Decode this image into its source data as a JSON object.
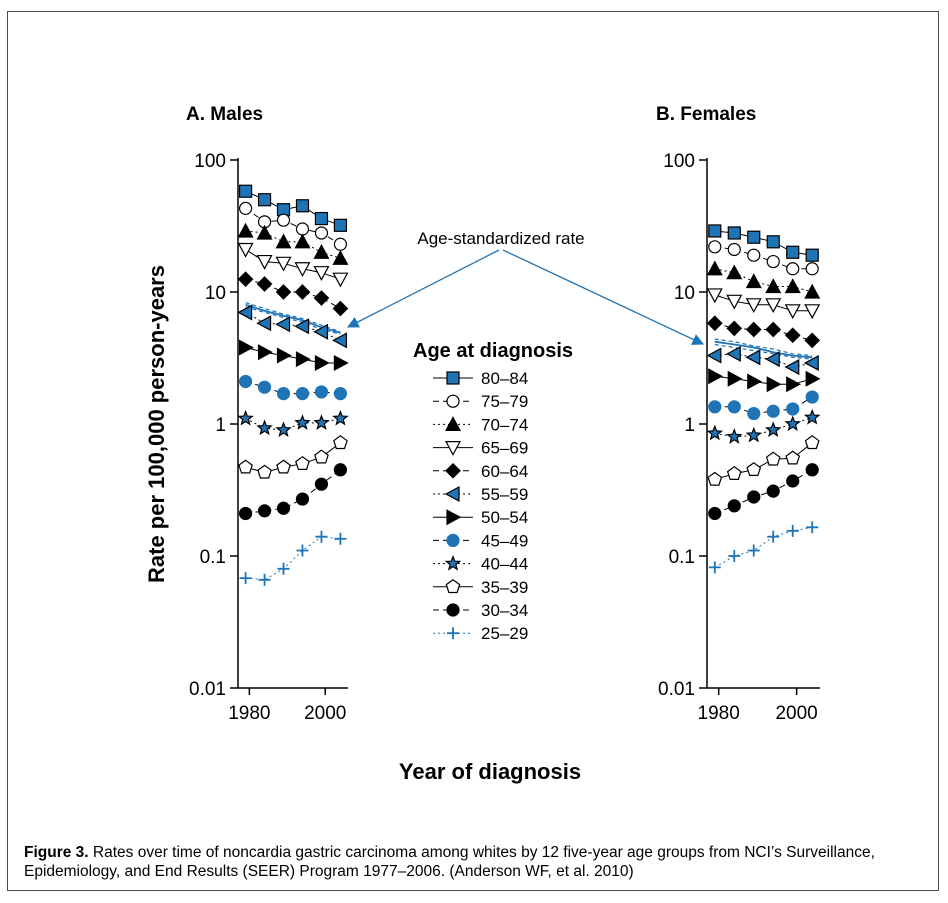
{
  "caption": {
    "label": "Figure 3.",
    "text": " Rates over time of noncardia gastric carcinoma among whites by 12 five-year age groups from NCI’s Surveillance, Epidemiology, and End Results (SEER) Program 1977–2006. (Anderson WF, et al. 2010)"
  },
  "annotation": "Age-standardized rate",
  "colors": {
    "blue": "#1f74b6",
    "black": "#000000"
  },
  "chart_data": [
    {
      "type": "line",
      "title": "A. Males",
      "xlabel": "Year of diagnosis",
      "ylabel": "Rate per 100,000 person-years",
      "yscale": "log",
      "ylim": [
        0.01,
        100
      ],
      "xlim": [
        1977,
        2006
      ],
      "x_ticks": [
        "1980",
        "2000"
      ],
      "y_ticks": [
        "100",
        "10",
        "1",
        "0.1",
        "0.01"
      ],
      "x": [
        1979,
        1984,
        1989,
        1994,
        1999,
        2004
      ],
      "legend_title": "Age at diagnosis",
      "series": [
        {
          "name": "80–84",
          "values": [
            58,
            50,
            42,
            45,
            36,
            32
          ]
        },
        {
          "name": "75–79",
          "values": [
            43,
            34,
            35,
            30,
            28,
            23
          ]
        },
        {
          "name": "70–74",
          "values": [
            29,
            28,
            24,
            24,
            20,
            18
          ]
        },
        {
          "name": "65–69",
          "values": [
            21,
            17,
            16.5,
            15,
            14,
            12.5
          ]
        },
        {
          "name": "60–64",
          "values": [
            12.5,
            11.5,
            10,
            10,
            9,
            7.5
          ]
        },
        {
          "name": "55–59",
          "values": [
            7,
            5.8,
            5.7,
            5.5,
            5,
            4.3
          ]
        },
        {
          "name": "50–54",
          "values": [
            3.8,
            3.5,
            3.3,
            3.1,
            2.9,
            2.9
          ]
        },
        {
          "name": "45–49",
          "values": [
            2.1,
            1.9,
            1.7,
            1.7,
            1.75,
            1.7
          ]
        },
        {
          "name": "40–44",
          "values": [
            1.1,
            0.93,
            0.9,
            1.02,
            1.02,
            1.1
          ]
        },
        {
          "name": "35–39",
          "values": [
            0.47,
            0.43,
            0.47,
            0.5,
            0.56,
            0.72
          ]
        },
        {
          "name": "30–34",
          "values": [
            0.21,
            0.22,
            0.23,
            0.27,
            0.35,
            0.45
          ]
        },
        {
          "name": "25–29",
          "values": [
            0.068,
            0.066,
            0.08,
            0.11,
            0.14,
            0.135
          ]
        }
      ],
      "age_standardized": [
        [
          8.3,
          7.5,
          6.8,
          6.3,
          5.6,
          5.0
        ],
        [
          8.0,
          7.2,
          6.6,
          6.1,
          5.4,
          4.9
        ],
        [
          7.7,
          7.0,
          6.4,
          5.9,
          5.2,
          4.8
        ]
      ]
    },
    {
      "type": "line",
      "title": "B. Females",
      "xlabel": "Year of diagnosis",
      "ylabel": "Rate per 100,000 person-years",
      "yscale": "log",
      "ylim": [
        0.01,
        100
      ],
      "xlim": [
        1977,
        2006
      ],
      "x_ticks": [
        "1980",
        "2000"
      ],
      "y_ticks": [
        "100",
        "10",
        "1",
        "0.1",
        "0.01"
      ],
      "x": [
        1979,
        1984,
        1989,
        1994,
        1999,
        2004
      ],
      "series": [
        {
          "name": "80–84",
          "values": [
            29,
            28,
            26,
            24,
            20,
            19
          ]
        },
        {
          "name": "75–79",
          "values": [
            22,
            21,
            19,
            17,
            15,
            15
          ]
        },
        {
          "name": "70–74",
          "values": [
            15,
            14,
            12,
            11,
            11,
            10
          ]
        },
        {
          "name": "65–69",
          "values": [
            9.5,
            8.5,
            8,
            8,
            7.2,
            7.2
          ]
        },
        {
          "name": "60–64",
          "values": [
            5.8,
            5.3,
            5.2,
            5.2,
            4.7,
            4.3
          ]
        },
        {
          "name": "55–59",
          "values": [
            3.3,
            3.4,
            3.2,
            3.1,
            2.7,
            2.9
          ]
        },
        {
          "name": "50–54",
          "values": [
            2.3,
            2.2,
            2.1,
            2.0,
            2.0,
            2.2
          ]
        },
        {
          "name": "45–49",
          "values": [
            1.35,
            1.35,
            1.2,
            1.25,
            1.3,
            1.6
          ]
        },
        {
          "name": "40–44",
          "values": [
            0.85,
            0.8,
            0.82,
            0.9,
            1.0,
            1.12
          ]
        },
        {
          "name": "35–39",
          "values": [
            0.38,
            0.42,
            0.45,
            0.54,
            0.55,
            0.72
          ]
        },
        {
          "name": "30–34",
          "values": [
            0.21,
            0.24,
            0.28,
            0.31,
            0.37,
            0.45
          ]
        },
        {
          "name": "25–29",
          "values": [
            0.082,
            0.1,
            0.11,
            0.14,
            0.155,
            0.165
          ]
        }
      ],
      "age_standardized": [
        [
          4.4,
          4.2,
          3.9,
          3.7,
          3.4,
          3.3
        ],
        [
          4.2,
          4.0,
          3.8,
          3.5,
          3.3,
          3.2
        ],
        [
          4.0,
          3.8,
          3.6,
          3.4,
          3.2,
          3.1
        ]
      ]
    }
  ]
}
